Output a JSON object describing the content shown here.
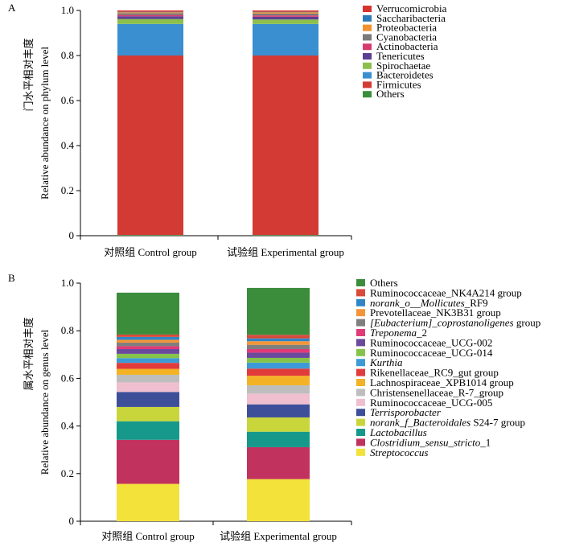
{
  "figure": {
    "panels": [
      "A",
      "B"
    ]
  },
  "chart_data": [
    {
      "panel": "A",
      "type": "bar",
      "stacked": true,
      "ylabel_zh": "门水平相对丰度",
      "ylabel": "Relative abundance on phylum level",
      "ylim": [
        0,
        1.0
      ],
      "yticks": [
        "0",
        "0.2",
        "0.4",
        "0.6",
        "0.8",
        "1.0"
      ],
      "categories": [
        "对照组 Control  group",
        "试验组 Experimental group"
      ],
      "legend_position": "right",
      "series": [
        {
          "name": "Others",
          "color": "#3a8f3a",
          "values": [
            0.003,
            0.003
          ]
        },
        {
          "name": "Firmicutes",
          "color": "#d33a33",
          "values": [
            0.797,
            0.797
          ]
        },
        {
          "name": "Bacteroidetes",
          "color": "#3a8fd0",
          "values": [
            0.14,
            0.14
          ]
        },
        {
          "name": "Spirochaetae",
          "color": "#8cc04a",
          "values": [
            0.022,
            0.02
          ]
        },
        {
          "name": "Tenericutes",
          "color": "#5b3f92",
          "values": [
            0.012,
            0.012
          ]
        },
        {
          "name": "Actinobacteria",
          "color": "#d63a6e",
          "values": [
            0.006,
            0.006
          ]
        },
        {
          "name": "Cyanobacteria",
          "color": "#7b7b7b",
          "values": [
            0.008,
            0.008
          ]
        },
        {
          "name": "Proteobacteria",
          "color": "#f0922e",
          "values": [
            0.004,
            0.006
          ]
        },
        {
          "name": "Saccharibacteria",
          "color": "#2b7bb9",
          "values": [
            0.002,
            0.002
          ]
        },
        {
          "name": "Verrucomicrobia",
          "color": "#d7342e",
          "values": [
            0.006,
            0.006
          ]
        }
      ]
    },
    {
      "panel": "B",
      "type": "bar",
      "stacked": true,
      "ylabel_zh": "属水平相对丰度",
      "ylabel": "Relative abundance on genus level",
      "ylim": [
        0,
        1.0
      ],
      "yticks": [
        "0",
        "0.2",
        "0.4",
        "0.6",
        "0.8",
        "1.0"
      ],
      "categories": [
        "对照组 Control  group",
        "试验组 Experimental group"
      ],
      "legend_position": "right",
      "series": [
        {
          "name": "Streptococcus",
          "italic": true,
          "color": "#f2e23a",
          "values": [
            0.157,
            0.177
          ]
        },
        {
          "name": "Clostridium_sensu_stricto_1",
          "italic_part": "Clostridium_sensu_stricto",
          "suffix": "_1",
          "color": "#c1325f",
          "values": [
            0.185,
            0.134
          ]
        },
        {
          "name": "Lactobacillus",
          "italic": true,
          "color": "#16998a",
          "values": [
            0.078,
            0.065
          ]
        },
        {
          "name": "norank_f_Bacteroidales S24-7 group",
          "italic_part": "norank_f_Bacteroidales",
          "suffix": " S24-7 group",
          "color": "#c8d63c",
          "values": [
            0.06,
            0.06
          ]
        },
        {
          "name": "Terrisporobacter",
          "italic": true,
          "color": "#3e4f9a",
          "values": [
            0.063,
            0.055
          ]
        },
        {
          "name": "Ruminococcaceae_UCG-005",
          "color": "#f0bfcf",
          "values": [
            0.04,
            0.045
          ]
        },
        {
          "name": "Christensenellaceae_R-7_group",
          "color": "#bebebe",
          "values": [
            0.032,
            0.035
          ]
        },
        {
          "name": "Lachnospiraceae_XPB1014 group",
          "color": "#f4b227",
          "values": [
            0.025,
            0.04
          ]
        },
        {
          "name": "Rikenellaceae_RC9_gut group",
          "color": "#e13b3b",
          "values": [
            0.025,
            0.03
          ]
        },
        {
          "name": "Kurthia",
          "italic": true,
          "color": "#3d9ad6",
          "values": [
            0.02,
            0.025
          ]
        },
        {
          "name": "Ruminococcaceae_UCG-014",
          "color": "#86c34a",
          "values": [
            0.018,
            0.02
          ]
        },
        {
          "name": "Ruminococcaceae_UCG-002",
          "color": "#6a4a9c",
          "values": [
            0.02,
            0.022
          ]
        },
        {
          "name": "Treponema_2",
          "italic_part": "Treponema",
          "suffix": "_2",
          "color": "#e23a78",
          "values": [
            0.012,
            0.015
          ]
        },
        {
          "name": "[Eubacterium]_coprostanoligenes group",
          "italic_part": "[Eubacterium]_coprostanoligenes",
          "suffix": " group",
          "color": "#7f7f7f",
          "values": [
            0.015,
            0.018
          ]
        },
        {
          "name": "Prevotellaceae_NK3B31 group",
          "color": "#f4953a",
          "values": [
            0.012,
            0.015
          ]
        },
        {
          "name": "norank_o__Mollicutes_RF9",
          "italic_part": "norank_o__Mollicutes",
          "suffix": "_RF9",
          "color": "#2f86c6",
          "values": [
            0.012,
            0.012
          ]
        },
        {
          "name": "Ruminococcaceae_NK4A214 group",
          "color": "#d94a3a",
          "values": [
            0.01,
            0.015
          ]
        },
        {
          "name": "Others",
          "color": "#3b8d3c",
          "values": [
            0.176,
            0.197
          ]
        }
      ]
    }
  ]
}
